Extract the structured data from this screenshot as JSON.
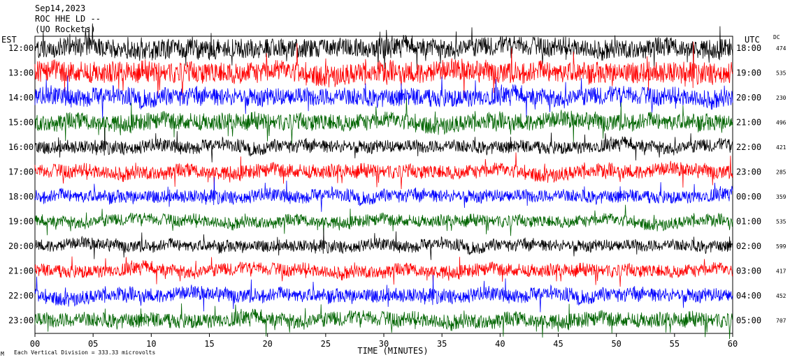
{
  "header": {
    "date": "Sep14,2023",
    "station": "ROC HHE LD --",
    "network": "(UO Rockets)"
  },
  "left_tz": "EST",
  "right_tz": "UTC",
  "dc_header": "DC",
  "x_axis_label": "TIME (MINUTES)",
  "footer_mark": "Μ",
  "footer_note": "Each Vertical Division =  333.33 microvolts",
  "colors": {
    "black": "#000000",
    "red": "#ff0000",
    "blue": "#0000ff",
    "green": "#006400"
  },
  "chart_data": {
    "type": "line",
    "xlabel": "TIME (MINUTES)",
    "xlim": [
      0,
      60
    ],
    "x_ticks": [
      "00",
      "05",
      "10",
      "15",
      "20",
      "25",
      "30",
      "35",
      "40",
      "45",
      "50",
      "55",
      "60"
    ],
    "trace_colors": [
      "black",
      "red",
      "blue",
      "green"
    ],
    "rows": [
      {
        "est": "12:00",
        "utc": "18:00",
        "dc": "474",
        "color": "black",
        "amplitude": 0.9
      },
      {
        "est": "13:00",
        "utc": "19:00",
        "dc": "535",
        "color": "red",
        "amplitude": 1.0
      },
      {
        "est": "14:00",
        "utc": "20:00",
        "dc": "230",
        "color": "blue",
        "amplitude": 0.85
      },
      {
        "est": "15:00",
        "utc": "21:00",
        "dc": "496",
        "color": "green",
        "amplitude": 0.8
      },
      {
        "est": "16:00",
        "utc": "22:00",
        "dc": "421",
        "color": "black",
        "amplitude": 0.6
      },
      {
        "est": "17:00",
        "utc": "23:00",
        "dc": "285",
        "color": "red",
        "amplitude": 0.65
      },
      {
        "est": "18:00",
        "utc": "00:00",
        "dc": "359",
        "color": "blue",
        "amplitude": 0.6
      },
      {
        "est": "19:00",
        "utc": "01:00",
        "dc": "535",
        "color": "green",
        "amplitude": 0.55
      },
      {
        "est": "20:00",
        "utc": "02:00",
        "dc": "599",
        "color": "black",
        "amplitude": 0.55
      },
      {
        "est": "21:00",
        "utc": "03:00",
        "dc": "417",
        "color": "red",
        "amplitude": 0.6
      },
      {
        "est": "22:00",
        "utc": "04:00",
        "dc": "452",
        "color": "blue",
        "amplitude": 0.65
      },
      {
        "est": "23:00",
        "utc": "05:00",
        "dc": "707",
        "color": "green",
        "amplitude": 0.7
      }
    ]
  }
}
